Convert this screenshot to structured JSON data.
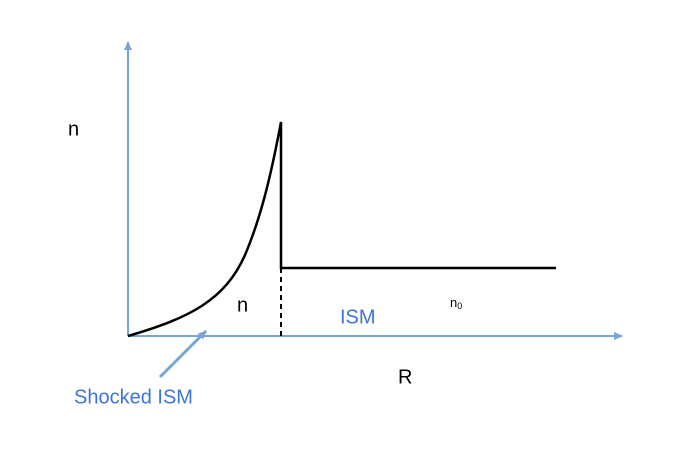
{
  "y_label": "n",
  "x_label": "R",
  "labels": {
    "shocked_density": "n",
    "ism": "ISM",
    "ambient_density": {
      "base": "n",
      "sub": "0"
    },
    "shocked_ism": "Shocked ISM"
  }
}
